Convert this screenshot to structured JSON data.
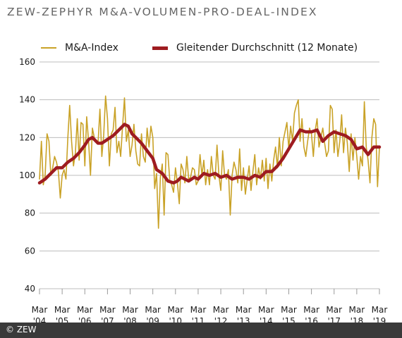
{
  "chart_data": {
    "type": "line",
    "title": "ZEW-ZEPHYR M&A-VOLUMEN-PRO-DEAL-INDEX",
    "ylim": [
      40,
      160
    ],
    "yticks": [
      "40",
      "60",
      "80",
      "100",
      "120",
      "140",
      "160"
    ],
    "grid": true,
    "legend_position": "top",
    "x_tick_labels": [
      {
        "month": "Mar",
        "year": "'04"
      },
      {
        "month": "Mar",
        "year": "'05"
      },
      {
        "month": "Mar",
        "year": "'06"
      },
      {
        "month": "Mar",
        "year": "'07"
      },
      {
        "month": "Mar",
        "year": "'08"
      },
      {
        "month": "Mar",
        "year": "'09"
      },
      {
        "month": "Mar",
        "year": "'10"
      },
      {
        "month": "Mar",
        "year": "'11"
      },
      {
        "month": "Mar",
        "year": "'12"
      },
      {
        "month": "Mar",
        "year": "'13"
      },
      {
        "month": "Mar",
        "year": "'14"
      },
      {
        "month": "Mar",
        "year": "'15"
      },
      {
        "month": "Mar",
        "year": "'16"
      },
      {
        "month": "Mar",
        "year": "'17"
      },
      {
        "month": "Mar",
        "year": "'18"
      },
      {
        "month": "Mar",
        "year": "'19"
      }
    ],
    "x_start": "2004-03",
    "x_end": "2019-03",
    "series": [
      {
        "name": "M&A-Index",
        "color": "#c9a227",
        "points": [
          [
            "2004-03",
            98
          ],
          [
            "2004-04",
            118
          ],
          [
            "2004-05",
            95
          ],
          [
            "2004-06",
            100
          ],
          [
            "2004-07",
            122
          ],
          [
            "2004-08",
            118
          ],
          [
            "2004-09",
            100
          ],
          [
            "2004-10",
            104
          ],
          [
            "2004-11",
            110
          ],
          [
            "2004-12",
            107
          ],
          [
            "2005-01",
            102
          ],
          [
            "2005-02",
            88
          ],
          [
            "2005-03",
            100
          ],
          [
            "2005-04",
            103
          ],
          [
            "2005-05",
            98
          ],
          [
            "2005-06",
            120
          ],
          [
            "2005-07",
            137
          ],
          [
            "2005-08",
            118
          ],
          [
            "2005-09",
            105
          ],
          [
            "2005-10",
            112
          ],
          [
            "2005-11",
            130
          ],
          [
            "2005-12",
            108
          ],
          [
            "2006-01",
            128
          ],
          [
            "2006-02",
            127
          ],
          [
            "2006-03",
            105
          ],
          [
            "2006-04",
            131
          ],
          [
            "2006-05",
            118
          ],
          [
            "2006-06",
            100
          ],
          [
            "2006-07",
            125
          ],
          [
            "2006-08",
            120
          ],
          [
            "2006-09",
            118
          ],
          [
            "2006-10",
            117
          ],
          [
            "2006-11",
            135
          ],
          [
            "2006-12",
            110
          ],
          [
            "2007-01",
            121
          ],
          [
            "2007-02",
            142
          ],
          [
            "2007-03",
            130
          ],
          [
            "2007-04",
            105
          ],
          [
            "2007-05",
            122
          ],
          [
            "2007-06",
            124
          ],
          [
            "2007-07",
            136
          ],
          [
            "2007-08",
            112
          ],
          [
            "2007-09",
            118
          ],
          [
            "2007-10",
            110
          ],
          [
            "2007-11",
            126
          ],
          [
            "2007-12",
            141
          ],
          [
            "2008-01",
            118
          ],
          [
            "2008-02",
            124
          ],
          [
            "2008-03",
            110
          ],
          [
            "2008-04",
            116
          ],
          [
            "2008-05",
            127
          ],
          [
            "2008-06",
            113
          ],
          [
            "2008-07",
            106
          ],
          [
            "2008-08",
            105
          ],
          [
            "2008-09",
            122
          ],
          [
            "2008-10",
            110
          ],
          [
            "2008-11",
            107
          ],
          [
            "2008-12",
            125
          ],
          [
            "2009-01",
            115
          ],
          [
            "2009-02",
            126
          ],
          [
            "2009-03",
            120
          ],
          [
            "2009-04",
            93
          ],
          [
            "2009-05",
            101
          ],
          [
            "2009-06",
            72
          ],
          [
            "2009-07",
            99
          ],
          [
            "2009-08",
            106
          ],
          [
            "2009-09",
            79
          ],
          [
            "2009-10",
            112
          ],
          [
            "2009-11",
            111
          ],
          [
            "2009-12",
            97
          ],
          [
            "2010-01",
            95
          ],
          [
            "2010-02",
            91
          ],
          [
            "2010-03",
            104
          ],
          [
            "2010-04",
            96
          ],
          [
            "2010-05",
            85
          ],
          [
            "2010-06",
            106
          ],
          [
            "2010-07",
            103
          ],
          [
            "2010-08",
            96
          ],
          [
            "2010-09",
            110
          ],
          [
            "2010-10",
            98
          ],
          [
            "2010-11",
            99
          ],
          [
            "2010-12",
            104
          ],
          [
            "2011-01",
            103
          ],
          [
            "2011-02",
            95
          ],
          [
            "2011-03",
            97
          ],
          [
            "2011-04",
            111
          ],
          [
            "2011-05",
            100
          ],
          [
            "2011-06",
            108
          ],
          [
            "2011-07",
            95
          ],
          [
            "2011-08",
            103
          ],
          [
            "2011-09",
            95
          ],
          [
            "2011-10",
            110
          ],
          [
            "2011-11",
            100
          ],
          [
            "2011-12",
            98
          ],
          [
            "2012-01",
            116
          ],
          [
            "2012-02",
            100
          ],
          [
            "2012-03",
            92
          ],
          [
            "2012-04",
            113
          ],
          [
            "2012-05",
            100
          ],
          [
            "2012-06",
            98
          ],
          [
            "2012-07",
            103
          ],
          [
            "2012-08",
            79
          ],
          [
            "2012-09",
            100
          ],
          [
            "2012-10",
            107
          ],
          [
            "2012-11",
            103
          ],
          [
            "2012-12",
            96
          ],
          [
            "2013-01",
            114
          ],
          [
            "2013-02",
            92
          ],
          [
            "2013-03",
            104
          ],
          [
            "2013-04",
            90
          ],
          [
            "2013-05",
            98
          ],
          [
            "2013-06",
            105
          ],
          [
            "2013-07",
            92
          ],
          [
            "2013-08",
            102
          ],
          [
            "2013-09",
            111
          ],
          [
            "2013-10",
            95
          ],
          [
            "2013-11",
            104
          ],
          [
            "2013-12",
            98
          ],
          [
            "2014-01",
            108
          ],
          [
            "2014-02",
            97
          ],
          [
            "2014-03",
            109
          ],
          [
            "2014-04",
            93
          ],
          [
            "2014-05",
            106
          ],
          [
            "2014-06",
            97
          ],
          [
            "2014-07",
            108
          ],
          [
            "2014-08",
            115
          ],
          [
            "2014-09",
            104
          ],
          [
            "2014-10",
            120
          ],
          [
            "2014-11",
            105
          ],
          [
            "2014-12",
            118
          ],
          [
            "2015-01",
            123
          ],
          [
            "2015-02",
            128
          ],
          [
            "2015-03",
            114
          ],
          [
            "2015-04",
            126
          ],
          [
            "2015-05",
            118
          ],
          [
            "2015-06",
            133
          ],
          [
            "2015-07",
            137
          ],
          [
            "2015-08",
            140
          ],
          [
            "2015-09",
            118
          ],
          [
            "2015-10",
            130
          ],
          [
            "2015-11",
            115
          ],
          [
            "2015-12",
            110
          ],
          [
            "2016-01",
            118
          ],
          [
            "2016-02",
            125
          ],
          [
            "2016-03",
            122
          ],
          [
            "2016-04",
            110
          ],
          [
            "2016-05",
            124
          ],
          [
            "2016-06",
            130
          ],
          [
            "2016-07",
            115
          ],
          [
            "2016-08",
            120
          ],
          [
            "2016-09",
            125
          ],
          [
            "2016-10",
            117
          ],
          [
            "2016-11",
            110
          ],
          [
            "2016-12",
            113
          ],
          [
            "2017-01",
            137
          ],
          [
            "2017-02",
            135
          ],
          [
            "2017-03",
            112
          ],
          [
            "2017-04",
            124
          ],
          [
            "2017-05",
            110
          ],
          [
            "2017-06",
            118
          ],
          [
            "2017-07",
            132
          ],
          [
            "2017-08",
            112
          ],
          [
            "2017-09",
            125
          ],
          [
            "2017-10",
            117
          ],
          [
            "2017-11",
            102
          ],
          [
            "2017-12",
            122
          ],
          [
            "2018-01",
            108
          ],
          [
            "2018-02",
            120
          ],
          [
            "2018-03",
            110
          ],
          [
            "2018-04",
            98
          ],
          [
            "2018-05",
            110
          ],
          [
            "2018-06",
            105
          ],
          [
            "2018-07",
            139
          ],
          [
            "2018-08",
            115
          ],
          [
            "2018-09",
            108
          ],
          [
            "2018-10",
            96
          ],
          [
            "2018-11",
            120
          ],
          [
            "2018-12",
            130
          ],
          [
            "2019-01",
            127
          ],
          [
            "2019-02",
            94
          ],
          [
            "2019-03",
            115
          ]
        ]
      },
      {
        "name": "Gleitender Durchschnitt (12 Monate)",
        "color": "#9e1c20",
        "points": [
          [
            "2004-03",
            96
          ],
          [
            "2004-06",
            98
          ],
          [
            "2004-09",
            101
          ],
          [
            "2004-12",
            104
          ],
          [
            "2005-03",
            104
          ],
          [
            "2005-06",
            107
          ],
          [
            "2005-09",
            109
          ],
          [
            "2005-12",
            112
          ],
          [
            "2006-03",
            116
          ],
          [
            "2006-05",
            119
          ],
          [
            "2006-07",
            120
          ],
          [
            "2006-10",
            117
          ],
          [
            "2006-12",
            117
          ],
          [
            "2007-03",
            119
          ],
          [
            "2007-06",
            121
          ],
          [
            "2007-09",
            124
          ],
          [
            "2007-12",
            127
          ],
          [
            "2008-02",
            126
          ],
          [
            "2008-04",
            122
          ],
          [
            "2008-06",
            120
          ],
          [
            "2008-09",
            117
          ],
          [
            "2008-12",
            113
          ],
          [
            "2009-03",
            109
          ],
          [
            "2009-05",
            103
          ],
          [
            "2009-08",
            101
          ],
          [
            "2009-11",
            97
          ],
          [
            "2010-02",
            96
          ],
          [
            "2010-04",
            97
          ],
          [
            "2010-06",
            99
          ],
          [
            "2010-08",
            98
          ],
          [
            "2010-10",
            97
          ],
          [
            "2011-01",
            99
          ],
          [
            "2011-03",
            98
          ],
          [
            "2011-06",
            101
          ],
          [
            "2011-09",
            100
          ],
          [
            "2011-12",
            101
          ],
          [
            "2012-03",
            99
          ],
          [
            "2012-06",
            100
          ],
          [
            "2012-09",
            98
          ],
          [
            "2012-12",
            99
          ],
          [
            "2013-03",
            99
          ],
          [
            "2013-06",
            98
          ],
          [
            "2013-09",
            100
          ],
          [
            "2013-12",
            99
          ],
          [
            "2014-03",
            102
          ],
          [
            "2014-06",
            102
          ],
          [
            "2014-09",
            105
          ],
          [
            "2014-12",
            109
          ],
          [
            "2015-03",
            114
          ],
          [
            "2015-06",
            119
          ],
          [
            "2015-09",
            124
          ],
          [
            "2015-12",
            123
          ],
          [
            "2016-03",
            123
          ],
          [
            "2016-06",
            124
          ],
          [
            "2016-09",
            118
          ],
          [
            "2016-12",
            121
          ],
          [
            "2017-03",
            123
          ],
          [
            "2017-06",
            122
          ],
          [
            "2017-09",
            121
          ],
          [
            "2017-12",
            119
          ],
          [
            "2018-03",
            114
          ],
          [
            "2018-06",
            115
          ],
          [
            "2018-09",
            111
          ],
          [
            "2018-12",
            115
          ],
          [
            "2019-03",
            115
          ]
        ]
      }
    ]
  }
}
